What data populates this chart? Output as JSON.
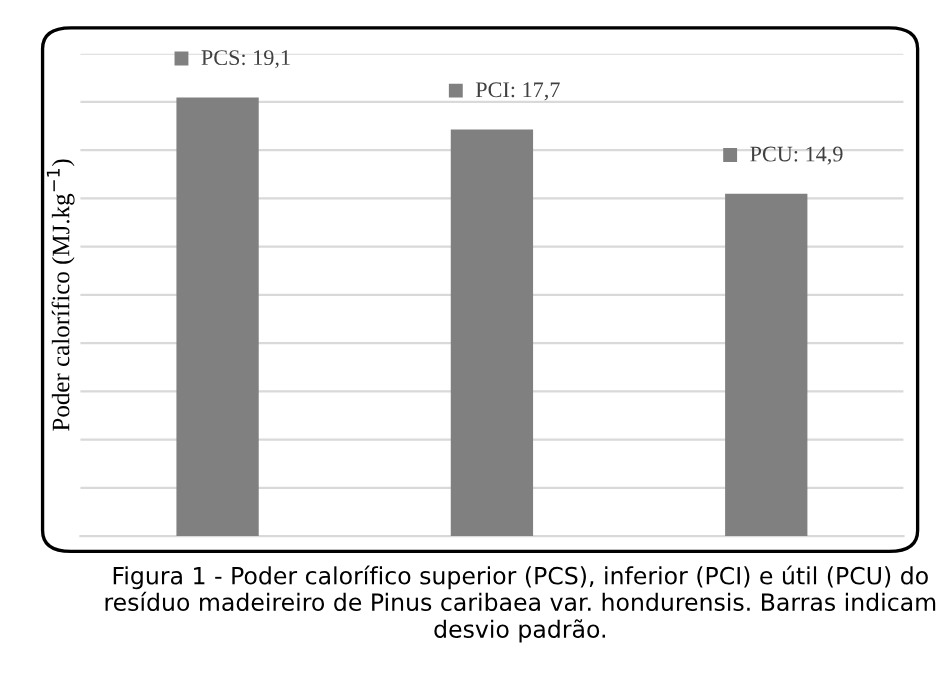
{
  "chart_data": {
    "type": "bar",
    "ylabel": "Poder calorífico (MJ.kg$^{−1}$)",
    "categories": [
      null,
      null,
      null
    ],
    "values": [
      19.1,
      17.7,
      14.9
    ],
    "value_labels": [
      "PCS: 19,1",
      "PCI: 17,7",
      "PCU: 14,9"
    ],
    "color": "#808080",
    "ylim": [
      0,
      21
    ],
    "yticks": [
      {
        "value": 0,
        "label": null
      },
      {
        "value": 2.1,
        "label": null
      },
      {
        "value": 4.2,
        "label": null
      },
      {
        "value": 6.3,
        "label": null
      },
      {
        "value": 8.4,
        "label": null
      },
      {
        "value": 10.5,
        "label": null
      },
      {
        "value": 12.6,
        "label": null
      },
      {
        "value": 14.7,
        "label": null
      },
      {
        "value": 16.8,
        "label": null
      },
      {
        "value": 18.9,
        "label": null
      },
      {
        "value": 21,
        "label": null
      }
    ],
    "grid": "y",
    "tick_labels": false,
    "annotations": [
      "Figura 1 - Poder calorífico superior (PCS), inferior (PCI) e útil (PCU) do resíduo madeireiro de Pinus caribaea var. hondurensis. Barras indicam desvio padrão."
    ]
  }
}
